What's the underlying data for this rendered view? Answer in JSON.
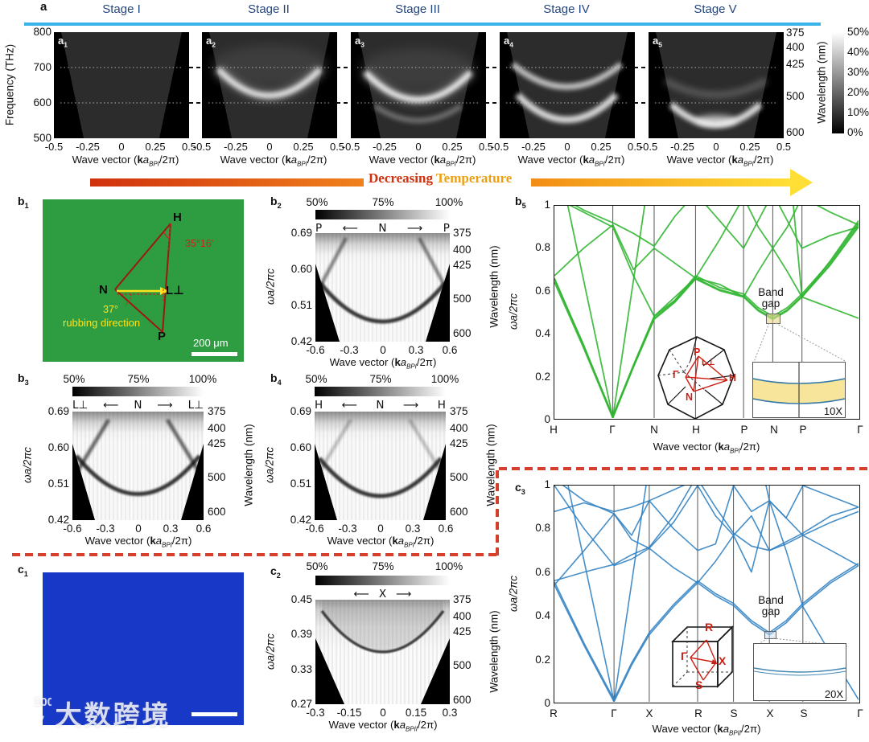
{
  "colors": {
    "stage_blue": "#24457c",
    "cyan_line": "#3ab4e8",
    "green_bands": "#2fb52f",
    "blue_bands": "#2d7fc1",
    "red_annotation": "#b02318",
    "yellow_annotation": "#ffe21a",
    "micrograph_green": "#2e9c41",
    "micrograph_blue": "#1838c8",
    "divider_red": "#d6402b",
    "bandgap_fill": "#f7e59c",
    "temp_arrow_start": "#d0310e",
    "temp_arrow_end": "#ffdf35"
  },
  "panel_a": {
    "label": "a",
    "stages": [
      "Stage I",
      "Stage II",
      "Stage III",
      "Stage IV",
      "Stage V"
    ],
    "subpanels": [
      {
        "base": "a",
        "sub": "1"
      },
      {
        "base": "a",
        "sub": "2"
      },
      {
        "base": "a",
        "sub": "3"
      },
      {
        "base": "a",
        "sub": "4"
      },
      {
        "base": "a",
        "sub": "5"
      }
    ],
    "y_axis": {
      "label": "Frequency (THz)",
      "ticks": [
        "800",
        "700",
        "600",
        "500"
      ]
    },
    "x_ticks": [
      "-0.5",
      "-0.25",
      "0",
      "0.25",
      "0.5"
    ],
    "x_label": {
      "prefix": "Wave vector (",
      "k": "k",
      "a": "a",
      "sub": "BPI",
      "suffix": "/2π)"
    },
    "right_axis": {
      "label": "Wavelength (nm)",
      "ticks": [
        "375",
        "400",
        "425",
        "500",
        "600"
      ]
    },
    "colorbar_ticks": [
      "50%",
      "40%",
      "30%",
      "20%",
      "10%",
      "0%"
    ],
    "temperature_arrow": {
      "word1": "Decreasing",
      "word2": "Temperature"
    }
  },
  "panel_b1": {
    "label": {
      "base": "b",
      "sub": "1"
    },
    "vertex_H": "H",
    "vertex_N": "N",
    "vertex_P": "P",
    "vertex_L": "L⊥",
    "angle_H": "35°16'",
    "angle_N": "37°",
    "rubbing_text": "rubbing direction",
    "scale_bar_text": "200 μm"
  },
  "panel_b2": {
    "label": {
      "base": "b",
      "sub": "2"
    },
    "colorbar_ticks": [
      "50%",
      "75%",
      "100%"
    ],
    "direction": {
      "left": "P",
      "arrow_left": "⟵",
      "center": "N",
      "arrow_right": "⟶",
      "right": "P"
    },
    "y_axis": {
      "label": "ωa/2πc",
      "ticks": [
        "0.69",
        "0.60",
        "0.51",
        "0.42"
      ]
    },
    "right_axis": {
      "label": "Wavelength (nm)",
      "ticks": [
        "375",
        "400",
        "425",
        "500",
        "600"
      ]
    },
    "x_ticks": [
      "-0.6",
      "-0.3",
      "0",
      "0.3",
      "0.6"
    ],
    "x_label": {
      "prefix": "Wave vector (",
      "k": "k",
      "a": "a",
      "sub": "BPI",
      "suffix": "/2π)"
    }
  },
  "panel_b3": {
    "label": {
      "base": "b",
      "sub": "3"
    },
    "colorbar_ticks": [
      "50%",
      "75%",
      "100%"
    ],
    "direction": {
      "left": "L⊥",
      "arrow_left": "⟵",
      "center": "N",
      "arrow_right": "⟶",
      "right": "L⊥"
    },
    "y_axis": {
      "label": "ωa/2πc",
      "ticks": [
        "0.69",
        "0.60",
        "0.51",
        "0.42"
      ]
    },
    "right_axis": {
      "label": "Wavelength (nm)",
      "ticks": [
        "375",
        "400",
        "425",
        "500",
        "600"
      ]
    },
    "x_ticks": [
      "-0.6",
      "-0.3",
      "0",
      "0.3",
      "0.6"
    ],
    "x_label": {
      "prefix": "Wave vector (",
      "k": "k",
      "a": "a",
      "sub": "BPI",
      "suffix": "/2π)"
    }
  },
  "panel_b4": {
    "label": {
      "base": "b",
      "sub": "4"
    },
    "colorbar_ticks": [
      "50%",
      "75%",
      "100%"
    ],
    "direction": {
      "left": "H",
      "arrow_left": "⟵",
      "center": "N",
      "arrow_right": "⟶",
      "right": "H"
    },
    "y_axis": {
      "label": "ωa/2πc",
      "ticks": [
        "0.69",
        "0.60",
        "0.51",
        "0.42"
      ]
    },
    "right_axis": {
      "label": "Wavelength (nm)",
      "ticks": [
        "375",
        "400",
        "425",
        "500",
        "600"
      ]
    },
    "x_ticks": [
      "-0.6",
      "-0.3",
      "0",
      "0.3",
      "0.6"
    ],
    "x_label": {
      "prefix": "Wave vector (",
      "k": "k",
      "a": "a",
      "sub": "BPI",
      "suffix": "/2π)"
    }
  },
  "panel_b5": {
    "label": {
      "base": "b",
      "sub": "5"
    },
    "y_axis": {
      "label": "ωa/2πc",
      "ticks": [
        "1",
        "0.8",
        "0.6",
        "0.4",
        "0.2",
        "0"
      ]
    },
    "x_label": {
      "prefix": "Wave vector (",
      "k": "k",
      "a": "a",
      "sub": "BPI",
      "suffix": "/2π)"
    },
    "band_gap": {
      "line1": "Band",
      "line2": "gap",
      "zoom": "10X"
    },
    "bz_labels": {
      "P": "P",
      "L": "L⊥",
      "G": "Γ",
      "N": "N",
      "H": "H"
    }
  },
  "panel_c1": {
    "label": {
      "base": "c",
      "sub": "1"
    }
  },
  "panel_c2": {
    "label": {
      "base": "c",
      "sub": "2"
    },
    "colorbar_ticks": [
      "50%",
      "75%",
      "100%"
    ],
    "direction": {
      "arrow_left": "⟵",
      "center": "X",
      "arrow_right": "⟶"
    },
    "y_axis": {
      "label": "ωa/2πc",
      "ticks": [
        "0.45",
        "0.39",
        "0.33",
        "0.27"
      ]
    },
    "right_axis": {
      "label": "Wavelength (nm)",
      "ticks": [
        "375",
        "400",
        "425",
        "500",
        "600"
      ]
    },
    "x_ticks": [
      "-0.3",
      "-0.15",
      "0",
      "0.15",
      "0.3"
    ],
    "x_label": {
      "prefix": "Wave vector (",
      "k": "k",
      "a": "a",
      "sub": "BPII",
      "suffix": "/2π)"
    }
  },
  "panel_c3": {
    "label": {
      "base": "c",
      "sub": "3"
    },
    "y_axis": {
      "label": "ωa/2πc",
      "ticks": [
        "1",
        "0.8",
        "0.6",
        "0.4",
        "0.2",
        "0"
      ]
    },
    "x_label": {
      "prefix": "Wave vector (",
      "k": "k",
      "a": "a",
      "sub": "BPII",
      "suffix": "/2π)"
    },
    "band_gap": {
      "line1": "Band",
      "line2": "gap",
      "zoom": "20X"
    },
    "cube_labels": {
      "R": "R",
      "G": "Γ",
      "X": "X",
      "S": "S"
    }
  },
  "watermark": {
    "logo_number": "100",
    "text": "大数跨境"
  },
  "chart_data": {
    "a_row": {
      "type": "heatmap",
      "x": {
        "label": "Wave vector (kaBPI/2π)",
        "range": [
          -0.5,
          0.5
        ],
        "ticks": [
          -0.5,
          -0.25,
          0,
          0.25,
          0.5
        ]
      },
      "y": {
        "label": "Frequency (THz)",
        "range": [
          500,
          800
        ],
        "ticks": [
          800,
          700,
          600,
          500
        ]
      },
      "right_y": {
        "label": "Wavelength (nm)",
        "ticks": [
          375,
          400,
          425,
          500,
          600
        ]
      },
      "colorbar": {
        "range": [
          "0%",
          "50%"
        ],
        "ticks": [
          "50%",
          "40%",
          "30%",
          "20%",
          "10%",
          "0%"
        ]
      },
      "guide_lines_THz": [
        700,
        600
      ],
      "panels": [
        {
          "stage": "Stage I",
          "bands_THz": []
        },
        {
          "stage": "Stage II",
          "bands_THz": [
            645
          ]
        },
        {
          "stage": "Stage III",
          "bands_THz": [
            640,
            570
          ]
        },
        {
          "stage": "Stage IV",
          "bands_THz": [
            685,
            610
          ]
        },
        {
          "stage": "Stage V",
          "bands_THz": [
            630,
            560
          ]
        }
      ]
    },
    "b2": {
      "type": "heatmap",
      "direction": "P–N–P",
      "x": {
        "range": [
          -0.6,
          0.6
        ],
        "ticks": [
          -0.6,
          -0.3,
          0,
          0.3,
          0.6
        ]
      },
      "y": {
        "label": "ωa/2πc",
        "range": [
          0.42,
          0.69
        ],
        "ticks": [
          0.69,
          0.6,
          0.51,
          0.42
        ]
      },
      "right_y_ticks": [
        375,
        400,
        425,
        500,
        600
      ],
      "colorbar": [
        "50%",
        "75%",
        "100%"
      ],
      "band_minimum_omega": 0.47
    },
    "b3": {
      "type": "heatmap",
      "direction": "L⊥–N–L⊥",
      "x": {
        "range": [
          -0.6,
          0.6
        ],
        "ticks": [
          -0.6,
          -0.3,
          0,
          0.3,
          0.6
        ]
      },
      "y": {
        "label": "ωa/2πc",
        "range": [
          0.42,
          0.69
        ],
        "ticks": [
          0.69,
          0.6,
          0.51,
          0.42
        ]
      },
      "right_y_ticks": [
        375,
        400,
        425,
        500,
        600
      ],
      "colorbar": [
        "50%",
        "75%",
        "100%"
      ],
      "band_minimum_omega": 0.485
    },
    "b4": {
      "type": "heatmap",
      "direction": "H–N–H",
      "x": {
        "range": [
          -0.6,
          0.6
        ],
        "ticks": [
          -0.6,
          -0.3,
          0,
          0.3,
          0.6
        ]
      },
      "y": {
        "label": "ωa/2πc",
        "range": [
          0.42,
          0.69
        ],
        "ticks": [
          0.69,
          0.6,
          0.51,
          0.42
        ]
      },
      "right_y_ticks": [
        375,
        400,
        425,
        500,
        600
      ],
      "colorbar": [
        "50%",
        "75%",
        "100%"
      ],
      "band_minimum_omega": 0.48
    },
    "c2": {
      "type": "heatmap",
      "direction": "X",
      "x": {
        "range": [
          -0.3,
          0.3
        ],
        "ticks": [
          -0.3,
          -0.15,
          0,
          0.15,
          0.3
        ]
      },
      "y": {
        "label": "ωa/2πc",
        "range": [
          0.27,
          0.45
        ],
        "ticks": [
          0.45,
          0.39,
          0.33,
          0.27
        ]
      },
      "right_y_ticks": [
        375,
        400,
        425,
        500,
        600
      ],
      "colorbar": [
        "50%",
        "75%",
        "100%"
      ],
      "band_minimum_omega": 0.36
    },
    "b5": {
      "type": "line",
      "ylabel": "ωa/2πc",
      "ylim": [
        0,
        1
      ],
      "color": "#2fb52f",
      "grid_color": "#555",
      "lw": 1.8,
      "k_points": [
        "H",
        "Γ",
        "N",
        "H",
        "P",
        "N",
        "P",
        "Γ"
      ],
      "k_pos": [
        0,
        0.192,
        0.328,
        0.464,
        0.622,
        0.718,
        0.814,
        1
      ],
      "band_gap": {
        "k": "N",
        "omega": 0.47,
        "zoom": "10X"
      },
      "x": [
        0,
        0.096,
        0.192,
        0.26,
        0.328,
        0.396,
        0.464,
        0.543,
        0.622,
        0.67,
        0.718,
        0.766,
        0.814,
        0.907,
        1
      ],
      "bands": [
        [
          0.64,
          0.33,
          0.0,
          0.24,
          0.465,
          0.545,
          0.655,
          0.6,
          0.57,
          0.505,
          0.465,
          0.505,
          0.57,
          0.72,
          0.9
        ],
        [
          0.66,
          0.34,
          0.01,
          0.25,
          0.48,
          0.555,
          0.67,
          0.615,
          0.585,
          0.52,
          0.48,
          0.52,
          0.585,
          0.735,
          0.92
        ],
        [
          0.655,
          0.345,
          0.005,
          0.245,
          0.47,
          0.55,
          0.66,
          0.605,
          0.575,
          0.51,
          0.47,
          0.51,
          0.575,
          0.725,
          0.91
        ],
        [
          1.04,
          0.97,
          0.9,
          0.67,
          0.48,
          0.57,
          0.66,
          0.84,
          1.04,
          0.9,
          0.8,
          0.9,
          1.04,
          0.97,
          0.91
        ],
        [
          0.67,
          0.8,
          0.91,
          0.7,
          0.8,
          0.73,
          0.66,
          0.63,
          0.57,
          0.69,
          0.8,
          0.69,
          0.57,
          0.74,
          0.93
        ],
        [
          1.06,
          0.98,
          0.92,
          0.87,
          0.81,
          0.95,
          1.06,
          0.93,
          0.8,
          0.93,
          1.06,
          0.93,
          0.8,
          0.86,
          0.9
        ],
        [
          1.3,
          0.65,
          0.0,
          0.65,
          1.3,
          1.3,
          1.3,
          1.3,
          1.3,
          1.3,
          1.3,
          1.3,
          1.3,
          1.3,
          1.3
        ],
        [
          1.3,
          1.3,
          1.3,
          1.3,
          1.3,
          1.3,
          1.3,
          1.3,
          1.3,
          1.3,
          1.3,
          1.3,
          0.57,
          0.52,
          0.47
        ]
      ]
    },
    "c3": {
      "type": "line",
      "ylabel": "ωa/2πc",
      "ylim": [
        0,
        1
      ],
      "color": "#2d7fc1",
      "grid_color": "#555",
      "lw": 1.6,
      "k_points": [
        "R",
        "Γ",
        "X",
        "R",
        "S",
        "X",
        "S",
        "Γ"
      ],
      "k_pos": [
        0,
        0.196,
        0.312,
        0.471,
        0.589,
        0.707,
        0.817,
        1
      ],
      "band_gap": {
        "k": "X",
        "omega": 0.31,
        "zoom": "20X"
      },
      "x": [
        0,
        0.098,
        0.196,
        0.254,
        0.312,
        0.392,
        0.471,
        0.53,
        0.589,
        0.648,
        0.707,
        0.762,
        0.817,
        0.909,
        1
      ],
      "bands": [
        [
          0.54,
          0.26,
          0.0,
          0.17,
          0.31,
          0.44,
          0.55,
          0.49,
          0.445,
          0.365,
          0.31,
          0.365,
          0.445,
          0.55,
          0.63
        ],
        [
          0.555,
          0.27,
          0.01,
          0.18,
          0.32,
          0.45,
          0.56,
          0.5,
          0.455,
          0.375,
          0.32,
          0.375,
          0.455,
          0.56,
          0.64
        ],
        [
          1.0,
          0.8,
          0.63,
          0.66,
          0.71,
          0.62,
          0.55,
          0.65,
          0.77,
          0.6,
          0.93,
          0.85,
          0.77,
          0.7,
          0.63
        ],
        [
          0.54,
          0.7,
          0.87,
          0.75,
          0.71,
          0.83,
          1.0,
          0.86,
          0.77,
          0.86,
          0.7,
          0.73,
          0.77,
          0.83,
          0.88
        ],
        [
          1.03,
          0.93,
          0.87,
          0.77,
          0.93,
          0.8,
          0.7,
          0.73,
          1.0,
          0.88,
          0.93,
          0.85,
          1.0,
          0.95,
          0.9
        ],
        [
          0.56,
          0.6,
          0.635,
          0.68,
          0.715,
          0.86,
          1.05,
          1.3,
          1.3,
          1.3,
          1.3,
          1.3,
          1.3,
          1.3,
          1.3
        ],
        [
          1.3,
          1.3,
          1.3,
          1.3,
          1.3,
          1.3,
          1.3,
          1.3,
          1.3,
          1.3,
          0.93,
          0.7,
          0.44,
          0.22,
          0.01
        ],
        [
          0.88,
          0.92,
          0.88,
          0.9,
          0.93,
          0.98,
          1.03,
          0.9,
          0.78,
          0.72,
          0.7,
          0.74,
          0.78,
          0.86,
          0.9
        ],
        [
          1.3,
          0.65,
          0.0,
          0.55,
          1.1,
          1.3,
          1.3,
          1.3,
          1.3,
          1.3,
          1.3,
          1.3,
          1.3,
          1.3,
          1.3
        ]
      ]
    }
  }
}
